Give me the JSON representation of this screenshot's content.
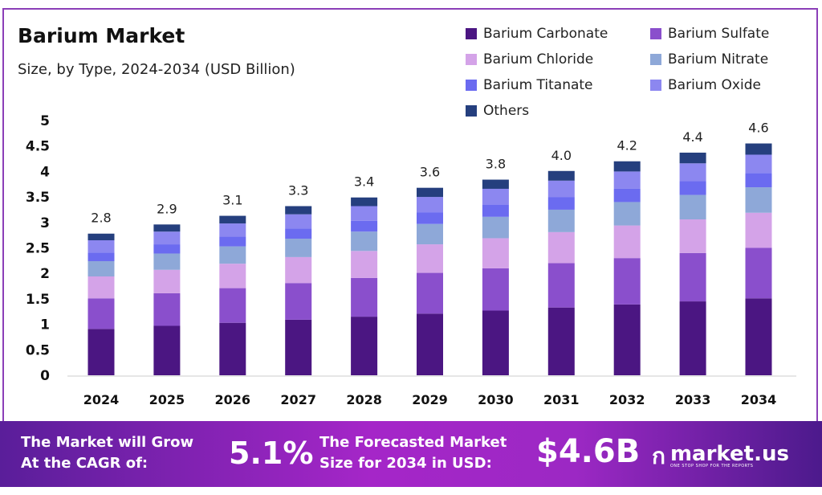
{
  "header": {
    "title": "Barium Market",
    "subtitle": "Size, by Type, 2024-2034 (USD Billion)"
  },
  "chart_data": {
    "type": "bar",
    "stacked": true,
    "title": "Barium Market",
    "subtitle": "Size, by Type, 2024-2034 (USD Billion)",
    "categories": [
      "2024",
      "2025",
      "2026",
      "2027",
      "2028",
      "2029",
      "2030",
      "2031",
      "2032",
      "2033",
      "2034"
    ],
    "ylim": [
      0,
      5
    ],
    "yticks": [
      "0",
      "0.5",
      "1",
      "1.5",
      "2",
      "2.5",
      "3",
      "3.5",
      "4",
      "4.5",
      "5"
    ],
    "grid": false,
    "legend_position": "top-right",
    "totals": [
      "2.8",
      "2.9",
      "3.1",
      "3.3",
      "3.4",
      "3.6",
      "3.8",
      "4.0",
      "4.2",
      "4.4",
      "4.6"
    ],
    "series": [
      {
        "name": "Barium Carbonate",
        "color": "#4b1682",
        "values": [
          0.91,
          0.97,
          1.03,
          1.09,
          1.15,
          1.21,
          1.27,
          1.33,
          1.39,
          1.45,
          1.51
        ]
      },
      {
        "name": "Barium Sulfate",
        "color": "#8a4fcc",
        "values": [
          0.6,
          0.64,
          0.68,
          0.72,
          0.76,
          0.8,
          0.83,
          0.87,
          0.91,
          0.95,
          0.99
        ]
      },
      {
        "name": "Barium Chloride",
        "color": "#d4a3e8",
        "values": [
          0.43,
          0.46,
          0.48,
          0.51,
          0.53,
          0.56,
          0.59,
          0.61,
          0.64,
          0.66,
          0.69
        ]
      },
      {
        "name": "Barium Nitrate",
        "color": "#8ea8d8",
        "values": [
          0.3,
          0.32,
          0.34,
          0.36,
          0.38,
          0.4,
          0.42,
          0.44,
          0.46,
          0.48,
          0.5
        ]
      },
      {
        "name": "Barium Titanate",
        "color": "#6b6bf0",
        "values": [
          0.17,
          0.18,
          0.19,
          0.2,
          0.21,
          0.23,
          0.24,
          0.25,
          0.26,
          0.27,
          0.28
        ]
      },
      {
        "name": "Barium Oxide",
        "color": "#8c87f0",
        "values": [
          0.24,
          0.25,
          0.26,
          0.28,
          0.29,
          0.3,
          0.31,
          0.32,
          0.34,
          0.35,
          0.36
        ]
      },
      {
        "name": "Others",
        "color": "#253f7e",
        "values": [
          0.13,
          0.14,
          0.15,
          0.16,
          0.17,
          0.18,
          0.18,
          0.19,
          0.2,
          0.21,
          0.22
        ]
      }
    ]
  },
  "footer": {
    "cagr_label_1": "The Market will Grow",
    "cagr_label_2": "At the CAGR of:",
    "cagr_value": "5.1%",
    "forecast_label_1": "The Forecasted Market",
    "forecast_label_2": "Size for 2034 in USD:",
    "forecast_value": "$4.6B",
    "brand": "market.us",
    "brand_tagline": "ONE STOP SHOP FOR THE REPORTS"
  }
}
